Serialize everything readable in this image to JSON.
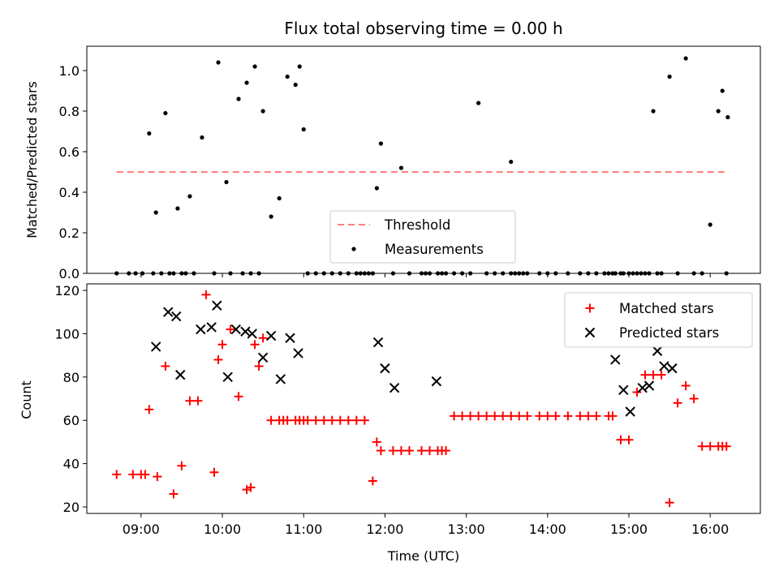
{
  "chart_data": [
    {
      "type": "scatter",
      "title": "Flux total observing time = 0.00 h",
      "ylabel": "Matched/Predicted stars",
      "xlabel": "",
      "xlim": [
        "08:20",
        "16:37"
      ],
      "ylim": [
        0,
        1.12
      ],
      "yticks": [
        0.0,
        0.2,
        0.4,
        0.6,
        0.8,
        1.0
      ],
      "ytick_labels": [
        "0.0",
        "0.2",
        "0.4",
        "0.6",
        "0.8",
        "1.0"
      ],
      "legend": {
        "placement": "lower-center",
        "entries": [
          "Threshold",
          "Measurements"
        ]
      },
      "threshold": {
        "name": "Threshold",
        "value": 0.5,
        "x_start": "08:42",
        "x_end": "16:13",
        "color": "#ff7f7f",
        "style": "dashed"
      },
      "measurements": {
        "name": "Measurements",
        "color": "#000000",
        "x": [
          "08:42",
          "08:51",
          "08:56",
          "09:01",
          "09:06",
          "09:11",
          "09:18",
          "09:27",
          "09:36",
          "09:45",
          "09:54",
          "09:57",
          "10:03",
          "10:12",
          "10:18",
          "10:24",
          "10:30",
          "10:36",
          "10:42",
          "10:48",
          "10:54",
          "10:57",
          "11:00",
          "11:03",
          "11:09",
          "11:15",
          "11:21",
          "11:27",
          "11:33",
          "11:39",
          "11:45",
          "11:51",
          "11:54",
          "11:57",
          "12:06",
          "12:12",
          "12:18",
          "12:27",
          "12:33",
          "12:39",
          "12:42",
          "12:45",
          "12:51",
          "12:57",
          "13:03",
          "13:09",
          "13:15",
          "13:21",
          "13:27",
          "13:33",
          "13:39",
          "13:45",
          "13:54",
          "14:00",
          "14:06",
          "14:15",
          "14:24",
          "14:30",
          "14:36",
          "14:45",
          "14:54",
          "15:00",
          "15:09",
          "15:12",
          "15:18",
          "15:24",
          "15:30",
          "15:36",
          "15:42",
          "15:48",
          "15:54",
          "16:00",
          "16:06",
          "16:09",
          "16:12",
          "16:13",
          "13:33",
          "13:36",
          "12:30",
          "09:09",
          "09:15",
          "09:21",
          "09:24",
          "09:30",
          "09:33",
          "09:39",
          "10:06",
          "10:15",
          "10:21",
          "10:27",
          "11:48",
          "11:42",
          "13:42",
          "14:42",
          "14:48",
          "14:50",
          "14:56",
          "15:03",
          "15:06",
          "15:15",
          "15:21"
        ],
        "y": [
          0,
          0,
          0,
          0,
          0.69,
          0.3,
          0.79,
          0.32,
          0.38,
          0.67,
          0,
          1.04,
          0.45,
          0.86,
          0.94,
          1.02,
          0.8,
          0.28,
          0.37,
          0.97,
          0.93,
          1.02,
          0.71,
          0,
          0,
          0,
          0,
          0,
          0,
          0,
          0,
          0,
          0.42,
          0.64,
          0,
          0.52,
          0,
          0,
          0,
          0,
          0,
          0,
          0,
          0,
          0,
          0.84,
          0,
          0,
          0,
          0,
          0,
          0,
          0,
          0,
          0,
          0,
          0,
          0,
          0,
          0,
          0,
          0,
          0,
          0,
          0.8,
          0,
          0.97,
          0,
          1.06,
          0,
          0,
          0.24,
          0.8,
          0.9,
          0,
          0.77,
          0.55,
          0,
          0,
          0,
          0,
          0,
          0,
          0,
          0,
          0,
          0,
          0,
          0,
          0,
          0,
          0,
          0,
          0,
          0,
          0,
          0,
          0,
          0,
          0,
          0
        ]
      }
    },
    {
      "type": "scatter",
      "title": "",
      "ylabel": "Count",
      "xlabel": "Time (UTC)",
      "xlim": [
        "08:20",
        "16:37"
      ],
      "ylim": [
        17,
        123
      ],
      "yticks": [
        20,
        40,
        60,
        80,
        100,
        120
      ],
      "ytick_labels": [
        "20",
        "40",
        "60",
        "80",
        "100",
        "120"
      ],
      "xticks": [
        "09:00",
        "10:00",
        "11:00",
        "12:00",
        "13:00",
        "14:00",
        "15:00",
        "16:00"
      ],
      "xtick_labels": [
        "09:00",
        "10:00",
        "11:00",
        "12:00",
        "13:00",
        "14:00",
        "15:00",
        "16:00"
      ],
      "legend": {
        "placement": "upper-right",
        "entries": [
          "Matched stars",
          "Predicted stars"
        ]
      },
      "series": [
        {
          "name": "Matched stars",
          "marker": "plus",
          "color": "#ff0000",
          "x": [
            "08:42",
            "08:54",
            "09:00",
            "09:03",
            "09:06",
            "09:12",
            "09:18",
            "09:24",
            "09:30",
            "09:36",
            "09:42",
            "09:48",
            "09:54",
            "09:57",
            "10:00",
            "10:06",
            "10:12",
            "10:18",
            "10:21",
            "10:24",
            "10:27",
            "10:30",
            "10:36",
            "10:42",
            "10:45",
            "10:48",
            "10:54",
            "10:57",
            "11:00",
            "11:03",
            "11:09",
            "11:15",
            "11:21",
            "11:27",
            "11:33",
            "11:39",
            "11:45",
            "11:51",
            "11:54",
            "11:57",
            "12:06",
            "12:12",
            "12:18",
            "12:27",
            "12:33",
            "12:39",
            "12:42",
            "12:45",
            "12:51",
            "12:57",
            "13:03",
            "13:09",
            "13:15",
            "13:21",
            "13:27",
            "13:33",
            "13:39",
            "13:45",
            "13:54",
            "14:00",
            "14:06",
            "14:15",
            "14:24",
            "14:30",
            "14:36",
            "14:45",
            "14:48",
            "14:54",
            "15:00",
            "15:06",
            "15:12",
            "15:18",
            "15:24",
            "15:30",
            "15:36",
            "15:42",
            "15:48",
            "15:54",
            "16:00",
            "16:06",
            "16:09",
            "16:12"
          ],
          "y": [
            35,
            35,
            35,
            35,
            65,
            34,
            85,
            26,
            39,
            69,
            69,
            118,
            36,
            88,
            95,
            102,
            71,
            28,
            29,
            95,
            85,
            98,
            60,
            60,
            60,
            60,
            60,
            60,
            60,
            60,
            60,
            60,
            60,
            60,
            60,
            60,
            60,
            32,
            50,
            46,
            46,
            46,
            46,
            46,
            46,
            46,
            46,
            46,
            62,
            62,
            62,
            62,
            62,
            62,
            62,
            62,
            62,
            62,
            62,
            62,
            62,
            62,
            62,
            62,
            62,
            62,
            62,
            51,
            51,
            73,
            81,
            81,
            81,
            22,
            68,
            76,
            70,
            48,
            48,
            48,
            48,
            48
          ]
        },
        {
          "name": "Predicted stars",
          "marker": "x",
          "color": "#000000",
          "x": [
            "09:11",
            "09:20",
            "09:26",
            "09:29",
            "09:44",
            "09:52",
            "09:56",
            "10:04",
            "10:10",
            "10:17",
            "10:22",
            "10:30",
            "10:36",
            "10:43",
            "10:50",
            "10:56",
            "11:55",
            "12:00",
            "12:07",
            "12:38",
            "14:50",
            "14:56",
            "15:01",
            "15:10",
            "15:15",
            "15:21",
            "15:26",
            "15:32"
          ],
          "y": [
            94,
            110,
            108,
            81,
            102,
            103,
            113,
            80,
            102,
            101,
            100,
            89,
            99,
            79,
            98,
            91,
            96,
            84,
            75,
            78,
            88,
            74,
            64,
            75,
            76,
            92,
            85,
            84
          ]
        }
      ]
    }
  ]
}
